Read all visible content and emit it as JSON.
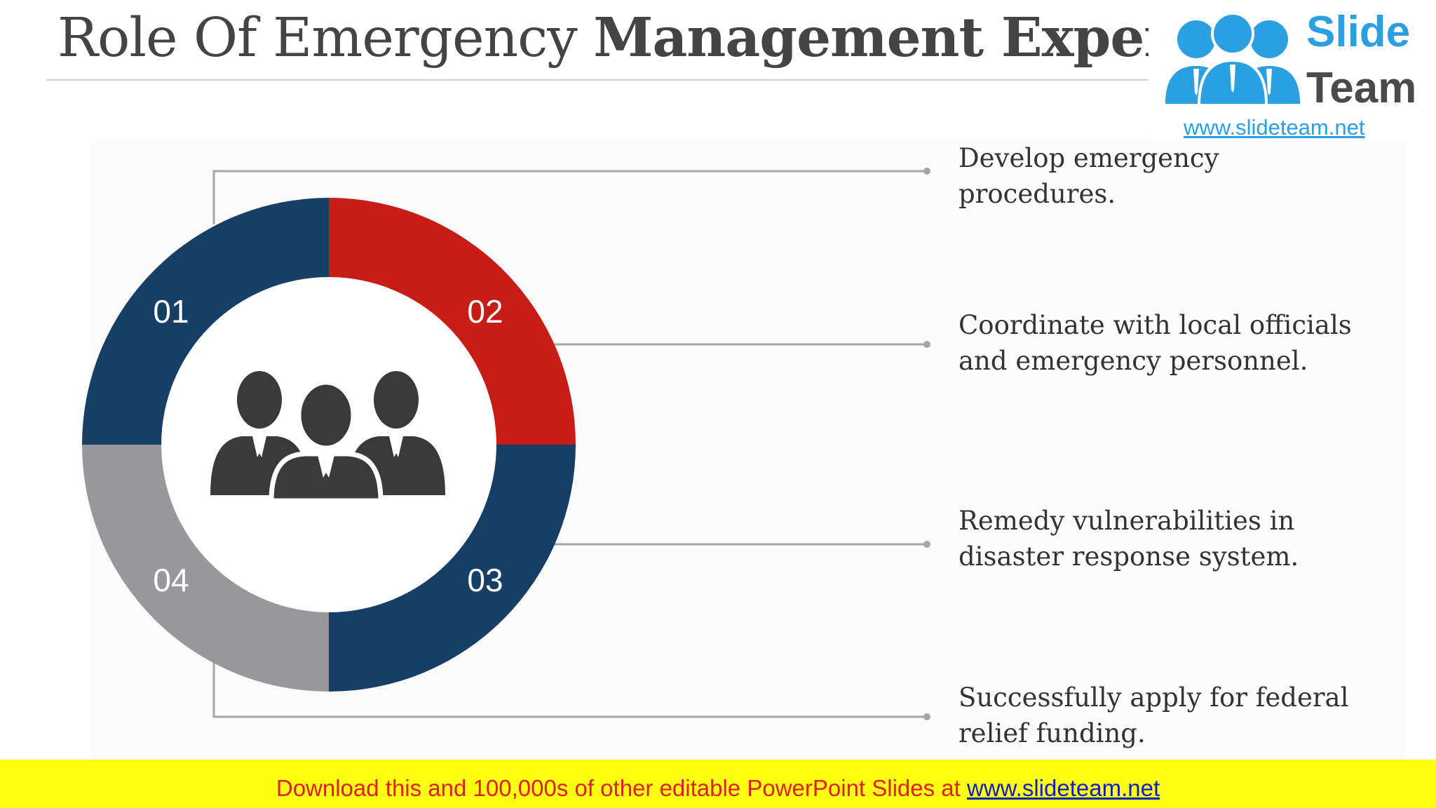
{
  "title": {
    "regular": "Role Of Emergency ",
    "bold": "Management Expert"
  },
  "logo": {
    "word1": "Slide",
    "word2": "Team",
    "url": "www.slideteam.net"
  },
  "segments": [
    {
      "number": "01",
      "color": "#173f66"
    },
    {
      "number": "02",
      "color": "#c81d16"
    },
    {
      "number": "03",
      "color": "#173f66"
    },
    {
      "number": "04",
      "color": "#98979b"
    }
  ],
  "center_icon": "business-team-icon",
  "items": [
    {
      "line1": "Develop emergency",
      "line2": "procedures."
    },
    {
      "line1": "Coordinate with local officials",
      "line2": "and emergency personnel."
    },
    {
      "line1": "Remedy vulnerabilities in",
      "line2": "disaster response system."
    },
    {
      "line1": "Successfully apply for federal",
      "line2": "relief funding."
    }
  ],
  "banner": {
    "text": "Download this and 100,000s of other editable PowerPoint Slides at ",
    "link": "www.slideteam.net"
  }
}
